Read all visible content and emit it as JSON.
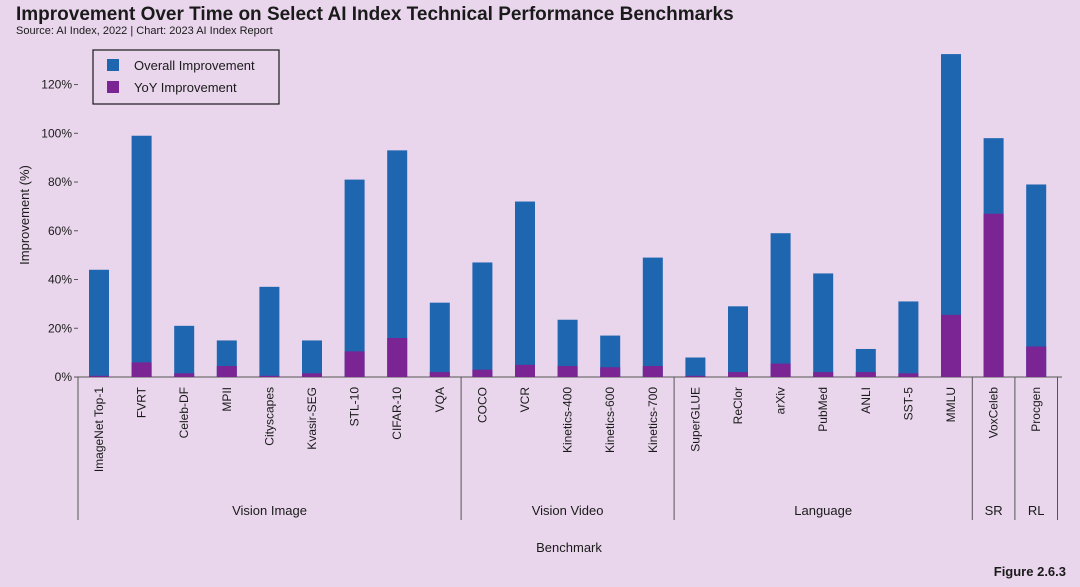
{
  "header": {
    "title": "Improvement Over Time on Select AI Index Technical Performance Benchmarks",
    "subtitle": "Source: AI Index, 2022 | Chart: 2023 AI Index Report",
    "figure_label": "Figure 2.6.3"
  },
  "chart_data": {
    "type": "bar",
    "stacking": "overlay",
    "categories": [
      "ImageNet Top-1",
      "FVRT",
      "Celeb-DF",
      "MPII",
      "Cityscapes",
      "Kvasir-SEG",
      "STL-10",
      "CIFAR-10",
      "VQA",
      "COCO",
      "VCR",
      "Kinetics-400",
      "Kinetics-600",
      "Kinetics-700",
      "SuperGLUE",
      "ReClor",
      "arXiv",
      "PubMed",
      "ANLI",
      "SST-5",
      "MMLU",
      "VoxCeleb",
      "Procgen"
    ],
    "series": [
      {
        "name": "Overall Improvement",
        "color": "#1f66b0",
        "values": [
          44,
          99,
          21,
          15,
          37,
          15,
          81,
          93,
          30.5,
          47,
          72,
          23.5,
          17,
          49,
          8,
          29,
          59,
          42.5,
          11.5,
          31,
          132.5,
          98,
          79
        ]
      },
      {
        "name": "YoY Improvement",
        "color": "#7b2493",
        "values": [
          0.5,
          6,
          1.5,
          4.5,
          0.5,
          1.5,
          10.5,
          16,
          2,
          3,
          5,
          4.5,
          4,
          4.5,
          0.5,
          2,
          5.5,
          2,
          2,
          1.5,
          25.5,
          67,
          12.5
        ]
      }
    ],
    "groups": [
      {
        "label": "Vision Image",
        "start": 0,
        "end": 8
      },
      {
        "label": "Vision Video",
        "start": 9,
        "end": 13
      },
      {
        "label": "Language",
        "start": 14,
        "end": 20
      },
      {
        "label": "SR",
        "start": 21,
        "end": 21
      },
      {
        "label": "RL",
        "start": 22,
        "end": 22
      }
    ],
    "xlabel": "Benchmark",
    "ylabel": "Improvement (%)",
    "ylim": [
      0,
      135
    ],
    "yticks": [
      0,
      20,
      40,
      60,
      80,
      100,
      120
    ],
    "ytick_labels": [
      "0%",
      "20%",
      "40%",
      "60%",
      "80%",
      "100%",
      "120%"
    ],
    "legend_position": "top-left",
    "grid": false
  }
}
